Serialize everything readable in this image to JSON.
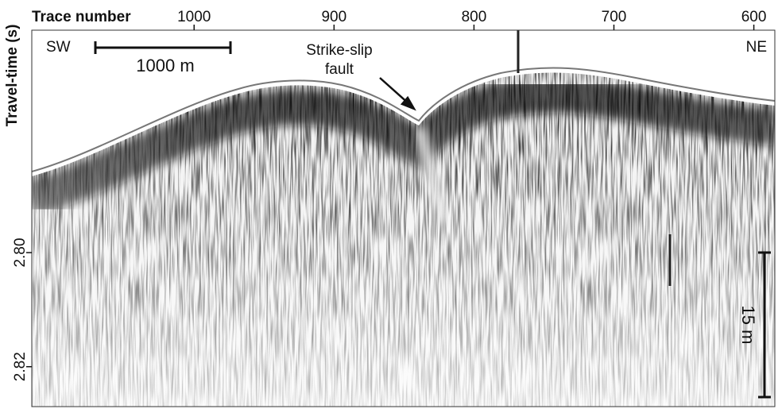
{
  "chart_data": {
    "type": "seismic",
    "x_label": "Trace number",
    "y_label": "Travel-time (s)",
    "xlim": [
      1116,
      585
    ],
    "xticks": [
      1000,
      900,
      800,
      700,
      600
    ],
    "ylim": [
      2.761,
      2.827
    ],
    "yticks": [
      {
        "value": 2.8,
        "label": "2.80"
      },
      {
        "value": 2.82,
        "label": "2.82"
      }
    ],
    "annotations": {
      "left": "SW",
      "right": "NE",
      "horizontal_scale": "1000 m",
      "vertical_scale": "15 m",
      "fault_line1": "Strike-slip",
      "fault_line2": "fault"
    }
  }
}
